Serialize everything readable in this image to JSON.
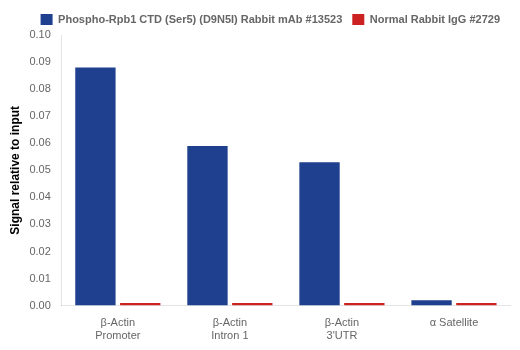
{
  "chart_data": {
    "type": "bar",
    "categories": [
      "β-Actin\nPromoter",
      "β-Actin\nIntron 1",
      "β-Actin\n3'UTR",
      "α Satellite"
    ],
    "series": [
      {
        "name": "Phospho-Rpb1 CTD (Ser5) (D9N5I) Rabbit mAb #13523",
        "color": "#1F3F8F",
        "values": [
          0.088,
          0.059,
          0.053,
          0.002
        ]
      },
      {
        "name": "Normal Rabbit IgG #2729",
        "color": "#CC2222",
        "values": [
          0.001,
          0.001,
          0.001,
          0.001
        ]
      }
    ],
    "ylabel": "Signal relative to input",
    "ylim": [
      0,
      0.1
    ],
    "yticks": [
      {
        "value": 0,
        "label": "0.00"
      },
      0.01,
      0.02,
      0.03,
      0.04,
      0.05,
      0.06,
      0.07,
      0.08,
      0.09,
      {
        "value": 0.1,
        "label": "0.10"
      }
    ],
    "grid": false,
    "legend": "upper right"
  }
}
